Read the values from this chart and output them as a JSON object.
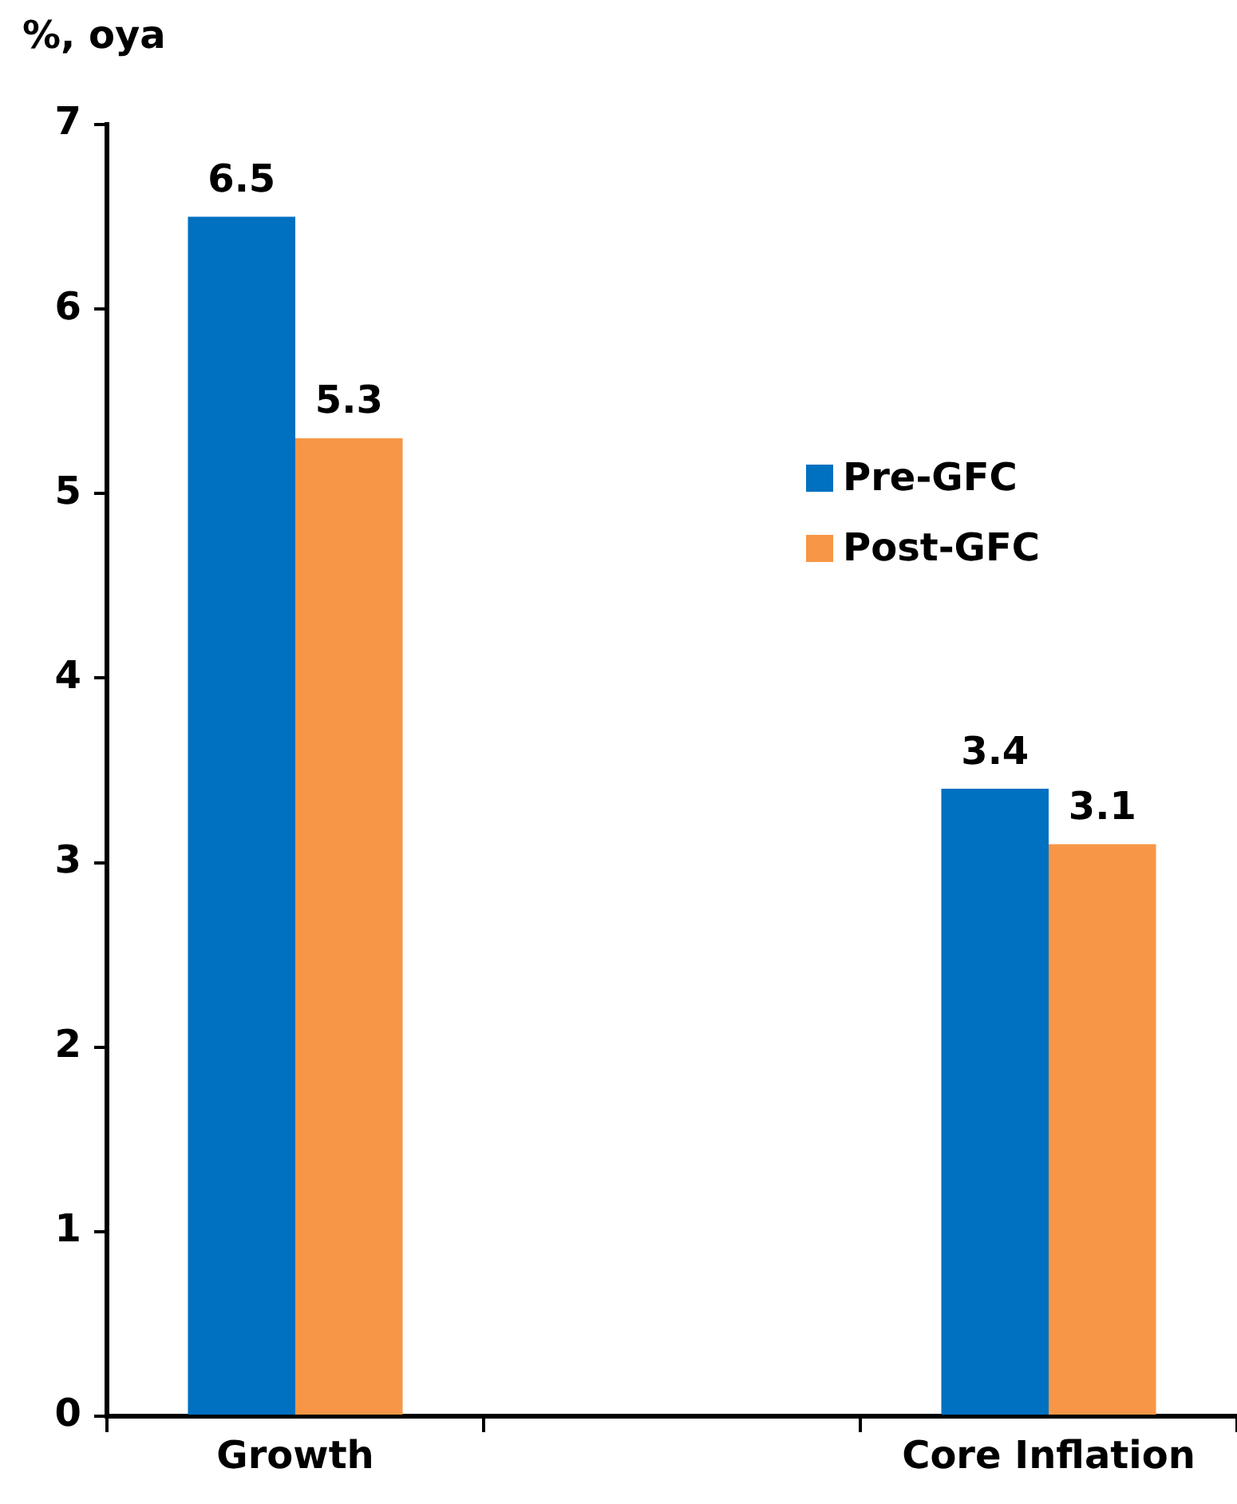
{
  "chart_data": {
    "type": "bar",
    "ylabel": "%, oya",
    "categories": [
      "Growth",
      null,
      "Core Inflation"
    ],
    "series": [
      {
        "name": "Pre-GFC",
        "color": "#0070c0",
        "values": [
          6.5,
          null,
          3.4
        ]
      },
      {
        "name": "Post-GFC",
        "color": "#f79646",
        "values": [
          5.3,
          null,
          3.1
        ]
      }
    ],
    "ylim": [
      0,
      7
    ],
    "yticks": [
      0,
      1,
      2,
      3,
      4,
      5,
      6,
      7
    ],
    "grid": false,
    "legend": "right",
    "data_labels": true
  }
}
